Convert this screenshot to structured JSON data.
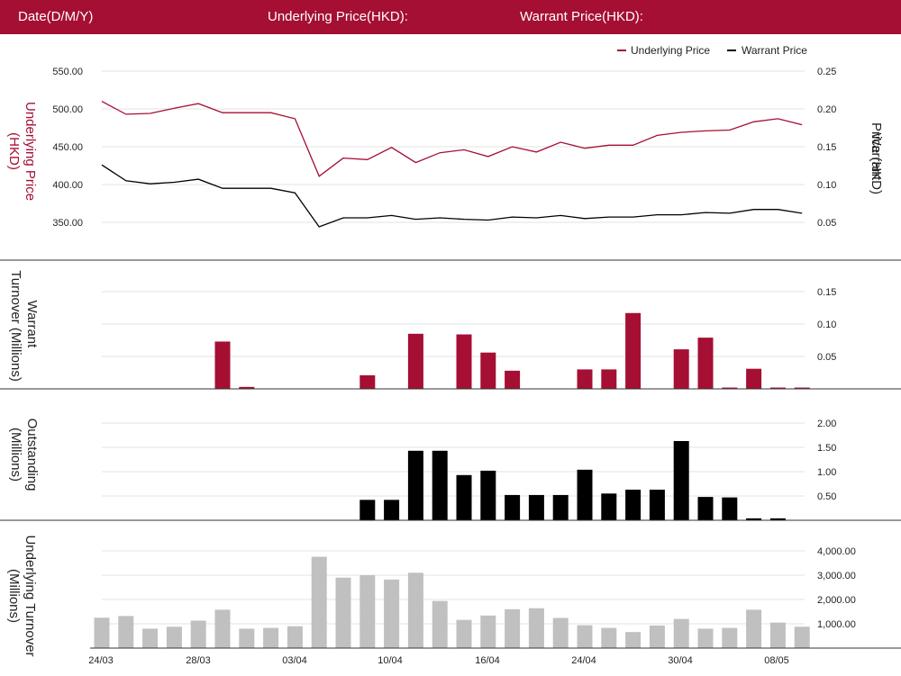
{
  "header": {
    "date_label": "Date(D/M/Y)",
    "underlying_label": "Underlying Price(HKD):",
    "warrant_label": "Warrant Price(HKD):"
  },
  "colors": {
    "underlying": "#a50f33",
    "warrant": "#000000",
    "underlying_turnover": "#c0c0c0",
    "header_bg": "#a50f33"
  },
  "chart_data": [
    {
      "type": "line",
      "legend": [
        "Underlying Price",
        "Warrant Price"
      ],
      "legend_position": "top-right",
      "left_ylabel": "Underlying Price (HKD)",
      "right_ylabel": "Warrant  Price (HKD)",
      "left_ticks": [
        "550.00",
        "500.00",
        "450.00",
        "400.00",
        "350.00"
      ],
      "right_ticks": [
        "0.25",
        "0.20",
        "0.15",
        "0.10",
        "0.05"
      ],
      "left_ylim": [
        350,
        550
      ],
      "right_ylim": [
        0.05,
        0.25
      ],
      "series": [
        {
          "name": "Underlying Price",
          "axis": "left",
          "values": [
            510,
            493,
            494,
            501,
            507,
            495,
            495,
            495,
            487,
            411,
            435,
            433,
            449,
            429,
            442,
            446,
            437,
            450,
            443,
            456,
            448,
            452,
            452,
            465,
            469,
            471,
            472,
            483,
            487,
            479
          ]
        },
        {
          "name": "Warrant Price",
          "axis": "right",
          "values": [
            0.126,
            0.105,
            0.101,
            0.103,
            0.107,
            0.095,
            0.095,
            0.095,
            0.089,
            0.044,
            0.056,
            0.056,
            0.059,
            0.054,
            0.056,
            0.054,
            0.053,
            0.057,
            0.056,
            0.059,
            0.055,
            0.057,
            0.057,
            0.06,
            0.06,
            0.063,
            0.062,
            0.067,
            0.067,
            0.062
          ]
        }
      ]
    },
    {
      "type": "bar",
      "ylabel": "Warrant  Turnover (Millions)",
      "ticks": [
        "0.15",
        "0.10",
        "0.05"
      ],
      "ylim": [
        0,
        0.15
      ],
      "values": [
        0,
        0,
        0,
        0,
        0,
        0.073,
        0.003,
        0,
        0,
        0,
        0,
        0.021,
        0,
        0.085,
        0,
        0.084,
        0.056,
        0.028,
        0,
        0,
        0.03,
        0.03,
        0.117,
        0,
        0.061,
        0.079,
        0.002,
        0.031,
        0.002,
        0.002
      ]
    },
    {
      "type": "bar",
      "ylabel": "Outstanding (Millions)",
      "ticks": [
        "2.00",
        "1.50",
        "1.00",
        "0.50"
      ],
      "ylim": [
        0,
        2.0
      ],
      "values": [
        0,
        0,
        0,
        0,
        0,
        0,
        0,
        0,
        0,
        0,
        0,
        0.42,
        0.42,
        1.43,
        1.43,
        0.93,
        1.02,
        0.52,
        0.52,
        0.52,
        1.04,
        0.55,
        0.63,
        0.63,
        1.63,
        0.48,
        0.47,
        0.04,
        0.04,
        0
      ]
    },
    {
      "type": "bar",
      "ylabel": "Underlying Turnover (Millions)",
      "ticks": [
        "4,000.00",
        "3,000.00",
        "2,000.00",
        "1,000.00"
      ],
      "ylim": [
        0,
        4000
      ],
      "x_ticks": [
        "24/03",
        "28/03",
        "03/04",
        "10/04",
        "16/04",
        "24/04",
        "30/04",
        "08/05"
      ],
      "values": [
        1250,
        1320,
        800,
        880,
        1130,
        1580,
        800,
        830,
        900,
        3760,
        2900,
        3000,
        2820,
        3100,
        1940,
        1160,
        1340,
        1600,
        1640,
        1240,
        940,
        830,
        660,
        930,
        1200,
        800,
        830,
        1580,
        1050,
        880
      ]
    }
  ]
}
